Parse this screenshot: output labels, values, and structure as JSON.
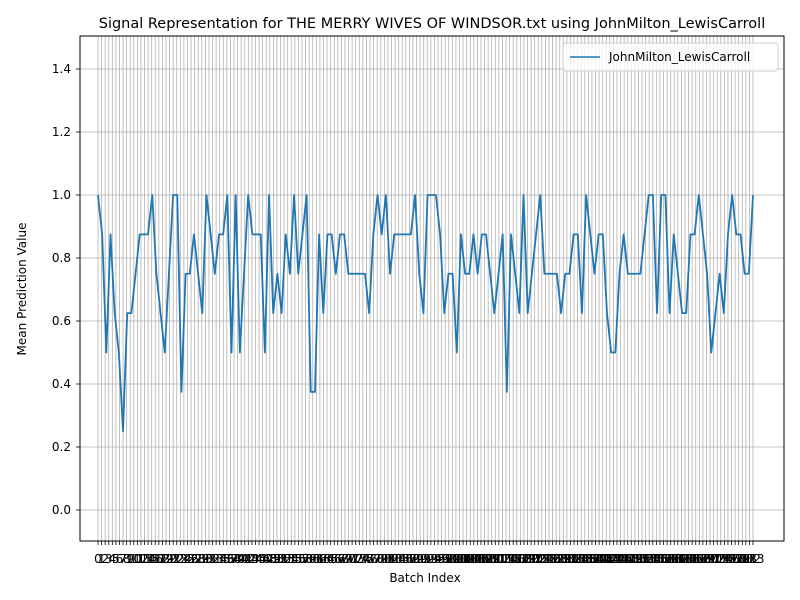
{
  "chart_data": {
    "type": "line",
    "title": "Signal Representation for THE MERRY WIVES OF WINDSOR.txt using JohnMilton_LewisCarroll",
    "xlabel": "Batch Index",
    "ylabel": "Mean Prediction Value",
    "xlim": [
      0,
      183
    ],
    "ylim": [
      -0.1,
      1.5
    ],
    "yticks": [
      "0.0",
      "0.2",
      "0.4",
      "0.6",
      "0.8",
      "1.0",
      "1.2",
      "1.4"
    ],
    "grid": true,
    "legend_position": "top-right",
    "colors": {
      "series": "#1f77b4",
      "grid": "#b0b0b0"
    },
    "series": [
      {
        "name": "JohnMilton_LewisCarroll",
        "values": [
          1.0,
          0.875,
          0.5,
          0.875,
          0.625,
          0.5,
          0.25,
          0.625,
          0.625,
          0.75,
          0.875,
          0.875,
          0.875,
          1.0,
          0.75,
          0.625,
          0.5,
          0.75,
          1.0,
          1.0,
          0.375,
          0.75,
          0.75,
          0.875,
          0.75,
          0.625,
          1.0,
          0.875,
          0.75,
          0.875,
          0.875,
          1.0,
          0.5,
          1.0,
          0.5,
          0.75,
          1.0,
          0.875,
          0.875,
          0.875,
          0.5,
          1.0,
          0.625,
          0.75,
          0.625,
          0.875,
          0.75,
          1.0,
          0.75,
          0.875,
          1.0,
          0.375,
          0.375,
          0.875,
          0.625,
          0.875,
          0.875,
          0.75,
          0.875,
          0.875,
          0.75,
          0.75,
          0.75,
          0.75,
          0.75,
          0.625,
          0.875,
          1.0,
          0.875,
          1.0,
          0.75,
          0.875,
          0.875,
          0.875,
          0.875,
          0.875,
          1.0,
          0.75,
          0.625,
          1.0,
          1.0,
          1.0,
          0.875,
          0.625,
          0.75,
          0.75,
          0.5,
          0.875,
          0.75,
          0.75,
          0.875,
          0.75,
          0.875,
          0.875,
          0.75,
          0.625,
          0.75,
          0.875,
          0.375,
          0.875,
          0.75,
          0.625,
          1.0,
          0.625,
          0.75,
          0.875,
          1.0,
          0.75,
          0.75,
          0.75,
          0.75,
          0.625,
          0.75,
          0.75,
          0.875,
          0.875,
          0.625,
          1.0,
          0.875,
          0.75,
          0.875,
          0.875,
          0.625,
          0.5,
          0.5,
          0.75,
          0.875,
          0.75,
          0.75,
          0.75,
          0.75,
          0.875,
          1.0,
          1.0,
          0.625,
          1.0,
          1.0,
          0.625,
          0.875,
          0.75,
          0.625,
          0.625,
          0.875,
          0.875,
          1.0,
          0.875,
          0.75,
          0.5,
          0.625,
          0.75,
          0.625,
          0.875,
          1.0,
          0.875,
          0.875,
          0.75,
          0.75,
          1.0
        ]
      }
    ]
  }
}
